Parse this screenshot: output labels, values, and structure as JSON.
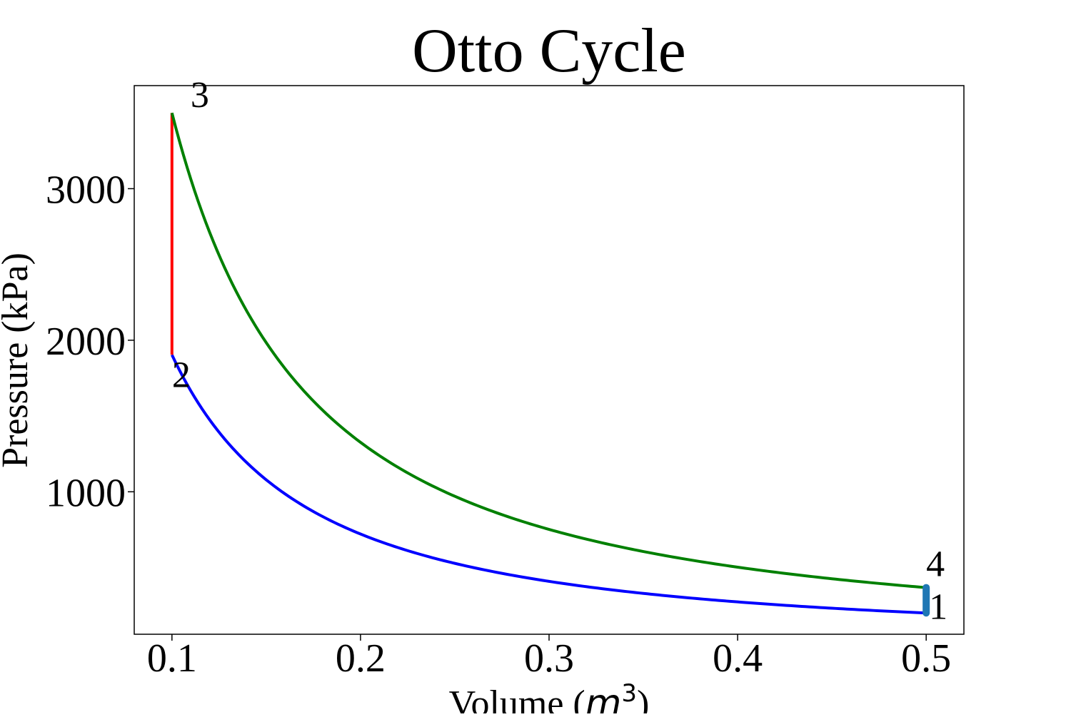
{
  "chart_data": {
    "type": "line",
    "title": "Otto Cycle",
    "xlabel_text": "Volume (",
    "xlabel_unit": "m",
    "xlabel_exp": "3",
    "xlabel_close": ")",
    "ylabel": "Pressure (kPa)",
    "xlim": [
      0.08,
      0.52
    ],
    "ylim": [
      60,
      3680
    ],
    "x_ticks": [
      0.1,
      0.2,
      0.3,
      0.4,
      0.5
    ],
    "x_tick_labels": [
      "0.1",
      "0.2",
      "0.3",
      "0.4",
      "0.5"
    ],
    "y_ticks": [
      1000,
      2000,
      3000
    ],
    "y_tick_labels": [
      "1000",
      "2000",
      "3000"
    ],
    "grid": false,
    "legend": "none",
    "gamma": 1.4,
    "series": [
      {
        "process": "compression",
        "from": "1",
        "to": "2",
        "kind": "adiabatic",
        "v_start": 0.5,
        "p_start": 200,
        "v_end": 0.1,
        "p_end": 1904,
        "color": "#0000ff"
      },
      {
        "process": "heat-addition",
        "from": "2",
        "to": "3",
        "kind": "isochoric",
        "v_start": 0.1,
        "p_start": 1904,
        "v_end": 0.1,
        "p_end": 3500,
        "color": "#ff0000"
      },
      {
        "process": "expansion",
        "from": "3",
        "to": "4",
        "kind": "adiabatic",
        "v_start": 0.1,
        "p_start": 3500,
        "v_end": 0.5,
        "p_end": 368,
        "color": "#008000"
      },
      {
        "process": "heat-rejection",
        "from": "4",
        "to": "1",
        "kind": "isochoric",
        "v_start": 0.5,
        "p_start": 368,
        "v_end": 0.5,
        "p_end": 200,
        "color": "#1f77b4"
      }
    ],
    "point_labels": [
      {
        "text": "1",
        "v": 0.5,
        "p": 200
      },
      {
        "text": "2",
        "v": 0.1,
        "p": 1904
      },
      {
        "text": "3",
        "v": 0.1,
        "p": 3500
      },
      {
        "text": "4",
        "v": 0.5,
        "p": 368
      }
    ]
  }
}
